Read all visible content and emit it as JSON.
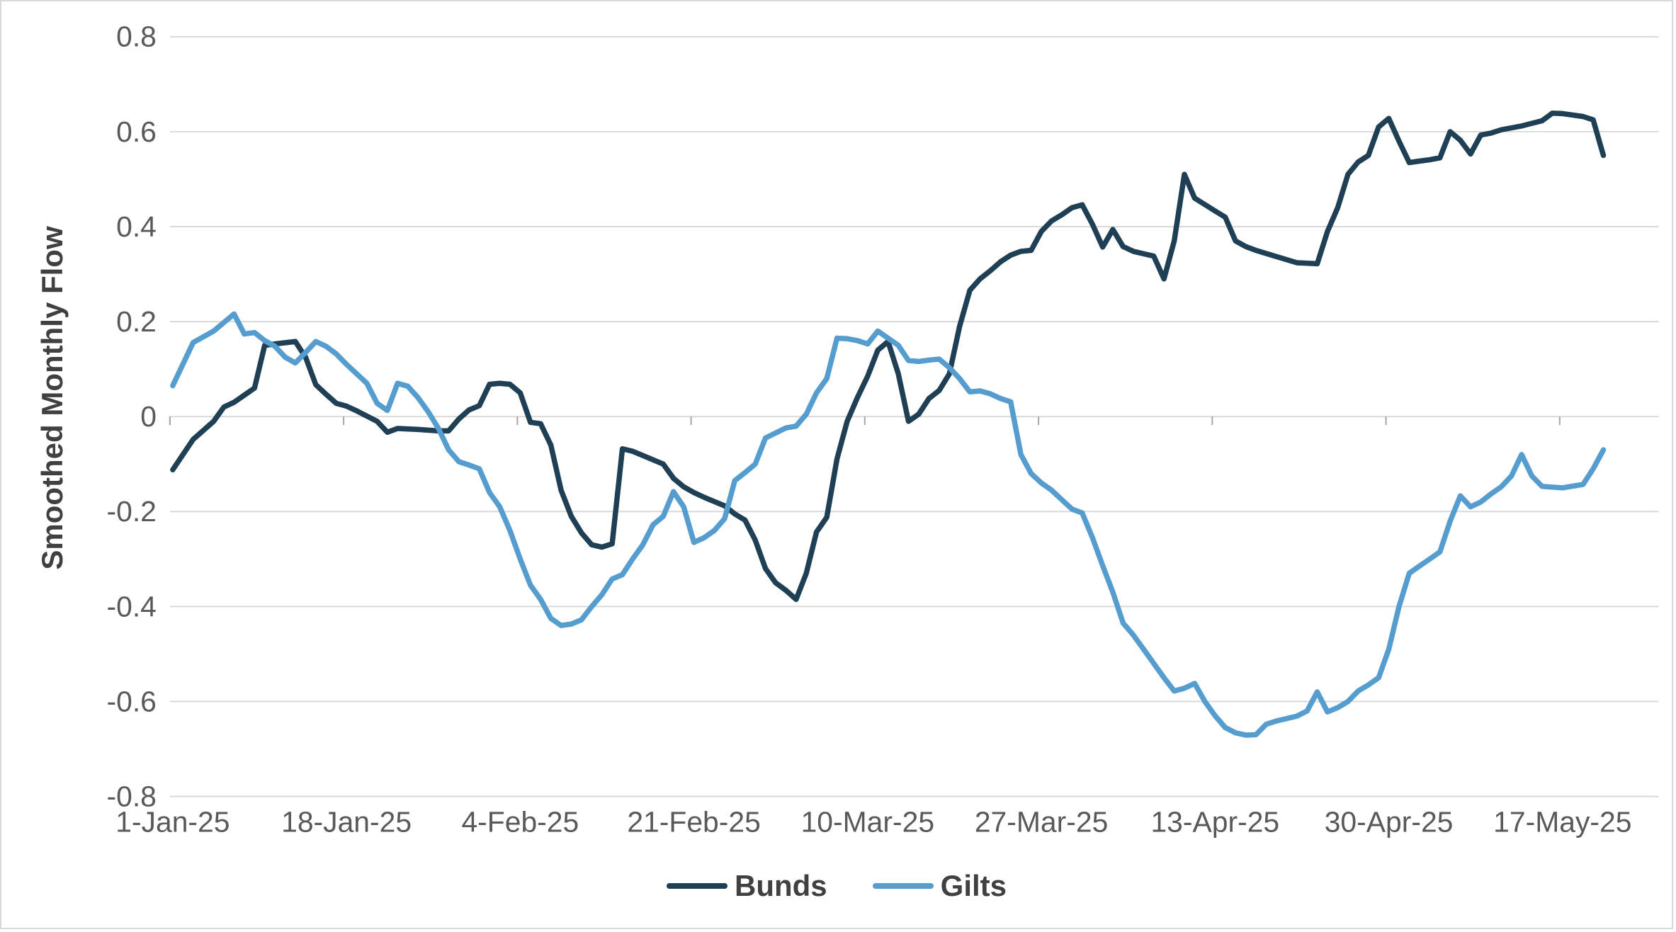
{
  "card": {
    "background": "#ffffff",
    "border_color": "#d9d9d9"
  },
  "chart_data": {
    "type": "line",
    "title": "",
    "xlabel": "",
    "ylabel": "Smoothed Monthly Flow",
    "ylim": [
      -0.8,
      0.8
    ],
    "grid": "horizontal-only",
    "grid_color": "#d9d9d9",
    "tick_color": "#a6a6a6",
    "axis_label_color": "#595959",
    "legend_position": "bottom-center",
    "x_unit": "days-since-1-Jan-25",
    "xlim_days": [
      0,
      145.5
    ],
    "y_ticks": [
      {
        "v": 0.8,
        "label": "0.8"
      },
      {
        "v": 0.6,
        "label": "0.6"
      },
      {
        "v": 0.4,
        "label": "0.4"
      },
      {
        "v": 0.2,
        "label": "0.2"
      },
      {
        "v": 0.0,
        "label": "0"
      },
      {
        "v": -0.2,
        "label": "-0.2"
      },
      {
        "v": -0.4,
        "label": "-0.4"
      },
      {
        "v": -0.6,
        "label": "-0.6"
      },
      {
        "v": -0.8,
        "label": "-0.8"
      }
    ],
    "x_ticks": [
      {
        "day": 0,
        "label": "1-Jan-25"
      },
      {
        "day": 17,
        "label": "18-Jan-25"
      },
      {
        "day": 34,
        "label": "4-Feb-25"
      },
      {
        "day": 51,
        "label": "21-Feb-25"
      },
      {
        "day": 68,
        "label": "10-Mar-25"
      },
      {
        "day": 85,
        "label": "27-Mar-25"
      },
      {
        "day": 102,
        "label": "13-Apr-25"
      },
      {
        "day": 119,
        "label": "30-Apr-25"
      },
      {
        "day": 136,
        "label": "17-May-25"
      }
    ],
    "series": [
      {
        "name": "Bunds",
        "color": "#1e3f54",
        "points": [
          [
            0,
            -0.112
          ],
          [
            2,
            -0.048
          ],
          [
            4,
            -0.01
          ],
          [
            5,
            0.02
          ],
          [
            6,
            0.03
          ],
          [
            7,
            0.045
          ],
          [
            8,
            0.06
          ],
          [
            9,
            0.15
          ],
          [
            10,
            0.153
          ],
          [
            12,
            0.158
          ],
          [
            13,
            0.125
          ],
          [
            14,
            0.067
          ],
          [
            15,
            0.047
          ],
          [
            16,
            0.028
          ],
          [
            17,
            0.022
          ],
          [
            18,
            0.012
          ],
          [
            20,
            -0.01
          ],
          [
            21,
            -0.033
          ],
          [
            22,
            -0.025
          ],
          [
            24,
            -0.027
          ],
          [
            26,
            -0.03
          ],
          [
            27,
            -0.03
          ],
          [
            28,
            -0.005
          ],
          [
            29,
            0.014
          ],
          [
            30,
            0.023
          ],
          [
            31,
            0.068
          ],
          [
            32,
            0.07
          ],
          [
            33,
            0.068
          ],
          [
            34,
            0.05
          ],
          [
            35,
            -0.012
          ],
          [
            36,
            -0.015
          ],
          [
            37,
            -0.06
          ],
          [
            38,
            -0.155
          ],
          [
            39,
            -0.21
          ],
          [
            40,
            -0.245
          ],
          [
            41,
            -0.27
          ],
          [
            42,
            -0.275
          ],
          [
            43,
            -0.268
          ],
          [
            44,
            -0.068
          ],
          [
            45,
            -0.073
          ],
          [
            46,
            -0.082
          ],
          [
            48,
            -0.1
          ],
          [
            49,
            -0.13
          ],
          [
            50,
            -0.148
          ],
          [
            51,
            -0.16
          ],
          [
            52,
            -0.17
          ],
          [
            54,
            -0.188
          ],
          [
            55,
            -0.205
          ],
          [
            56,
            -0.218
          ],
          [
            57,
            -0.26
          ],
          [
            58,
            -0.32
          ],
          [
            59,
            -0.35
          ],
          [
            60,
            -0.366
          ],
          [
            61,
            -0.385
          ],
          [
            62,
            -0.33
          ],
          [
            63,
            -0.243
          ],
          [
            64,
            -0.212
          ],
          [
            65,
            -0.089
          ],
          [
            66,
            -0.01
          ],
          [
            67,
            0.04
          ],
          [
            68,
            0.085
          ],
          [
            69,
            0.14
          ],
          [
            70,
            0.158
          ],
          [
            71,
            0.09
          ],
          [
            72,
            -0.01
          ],
          [
            73,
            0.005
          ],
          [
            74,
            0.038
          ],
          [
            75,
            0.055
          ],
          [
            76,
            0.09
          ],
          [
            77,
            0.19
          ],
          [
            78,
            0.266
          ],
          [
            79,
            0.29
          ],
          [
            80,
            0.307
          ],
          [
            81,
            0.326
          ],
          [
            82,
            0.34
          ],
          [
            83,
            0.348
          ],
          [
            84,
            0.35
          ],
          [
            85,
            0.39
          ],
          [
            86,
            0.412
          ],
          [
            87,
            0.425
          ],
          [
            88,
            0.44
          ],
          [
            89,
            0.446
          ],
          [
            90,
            0.405
          ],
          [
            91,
            0.357
          ],
          [
            92,
            0.394
          ],
          [
            93,
            0.358
          ],
          [
            94,
            0.348
          ],
          [
            96,
            0.338
          ],
          [
            97,
            0.29
          ],
          [
            98,
            0.37
          ],
          [
            99,
            0.51
          ],
          [
            100,
            0.46
          ],
          [
            102,
            0.433
          ],
          [
            103,
            0.42
          ],
          [
            104,
            0.37
          ],
          [
            105,
            0.358
          ],
          [
            106,
            0.35
          ],
          [
            108,
            0.337
          ],
          [
            110,
            0.324
          ],
          [
            112,
            0.322
          ],
          [
            113,
            0.39
          ],
          [
            114,
            0.44
          ],
          [
            115,
            0.51
          ],
          [
            116,
            0.536
          ],
          [
            117,
            0.55
          ],
          [
            118,
            0.61
          ],
          [
            119,
            0.628
          ],
          [
            120,
            0.58
          ],
          [
            121,
            0.535
          ],
          [
            122,
            0.538
          ],
          [
            123,
            0.541
          ],
          [
            124,
            0.545
          ],
          [
            125,
            0.6
          ],
          [
            126,
            0.582
          ],
          [
            127,
            0.553
          ],
          [
            128,
            0.593
          ],
          [
            129,
            0.597
          ],
          [
            130,
            0.604
          ],
          [
            132,
            0.612
          ],
          [
            134,
            0.623
          ],
          [
            135,
            0.639
          ],
          [
            136,
            0.638
          ],
          [
            138,
            0.632
          ],
          [
            139,
            0.625
          ],
          [
            140,
            0.55
          ]
        ]
      },
      {
        "name": "Gilts",
        "color": "#559ccf",
        "points": [
          [
            0,
            0.065
          ],
          [
            2,
            0.156
          ],
          [
            4,
            0.18
          ],
          [
            6,
            0.216
          ],
          [
            7,
            0.174
          ],
          [
            8,
            0.177
          ],
          [
            9,
            0.16
          ],
          [
            10,
            0.148
          ],
          [
            11,
            0.125
          ],
          [
            12,
            0.113
          ],
          [
            13,
            0.135
          ],
          [
            14,
            0.158
          ],
          [
            15,
            0.148
          ],
          [
            16,
            0.132
          ],
          [
            17,
            0.11
          ],
          [
            18,
            0.09
          ],
          [
            19,
            0.07
          ],
          [
            20,
            0.028
          ],
          [
            21,
            0.013
          ],
          [
            22,
            0.07
          ],
          [
            23,
            0.064
          ],
          [
            24,
            0.04
          ],
          [
            25,
            0.01
          ],
          [
            26,
            -0.025
          ],
          [
            27,
            -0.07
          ],
          [
            28,
            -0.095
          ],
          [
            29,
            -0.102
          ],
          [
            30,
            -0.11
          ],
          [
            31,
            -0.16
          ],
          [
            32,
            -0.19
          ],
          [
            33,
            -0.24
          ],
          [
            34,
            -0.3
          ],
          [
            35,
            -0.355
          ],
          [
            36,
            -0.385
          ],
          [
            37,
            -0.425
          ],
          [
            38,
            -0.44
          ],
          [
            39,
            -0.437
          ],
          [
            40,
            -0.428
          ],
          [
            41,
            -0.4
          ],
          [
            42,
            -0.375
          ],
          [
            43,
            -0.342
          ],
          [
            44,
            -0.333
          ],
          [
            45,
            -0.3
          ],
          [
            46,
            -0.27
          ],
          [
            47,
            -0.228
          ],
          [
            48,
            -0.21
          ],
          [
            49,
            -0.158
          ],
          [
            50,
            -0.19
          ],
          [
            51,
            -0.265
          ],
          [
            52,
            -0.255
          ],
          [
            53,
            -0.24
          ],
          [
            54,
            -0.215
          ],
          [
            55,
            -0.135
          ],
          [
            56,
            -0.118
          ],
          [
            57,
            -0.1
          ],
          [
            58,
            -0.045
          ],
          [
            60,
            -0.024
          ],
          [
            61,
            -0.02
          ],
          [
            62,
            0.005
          ],
          [
            63,
            0.05
          ],
          [
            64,
            0.08
          ],
          [
            65,
            0.165
          ],
          [
            66,
            0.164
          ],
          [
            67,
            0.16
          ],
          [
            68,
            0.153
          ],
          [
            69,
            0.18
          ],
          [
            70,
            0.165
          ],
          [
            71,
            0.15
          ],
          [
            72,
            0.118
          ],
          [
            73,
            0.116
          ],
          [
            74,
            0.119
          ],
          [
            75,
            0.121
          ],
          [
            76,
            0.103
          ],
          [
            77,
            0.08
          ],
          [
            78,
            0.052
          ],
          [
            79,
            0.054
          ],
          [
            80,
            0.048
          ],
          [
            81,
            0.038
          ],
          [
            82,
            0.031
          ],
          [
            83,
            -0.08
          ],
          [
            84,
            -0.12
          ],
          [
            85,
            -0.14
          ],
          [
            86,
            -0.155
          ],
          [
            87,
            -0.175
          ],
          [
            88,
            -0.195
          ],
          [
            89,
            -0.203
          ],
          [
            90,
            -0.255
          ],
          [
            91,
            -0.314
          ],
          [
            92,
            -0.37
          ],
          [
            93,
            -0.435
          ],
          [
            94,
            -0.46
          ],
          [
            95,
            -0.49
          ],
          [
            96,
            -0.52
          ],
          [
            97,
            -0.55
          ],
          [
            98,
            -0.578
          ],
          [
            99,
            -0.572
          ],
          [
            100,
            -0.562
          ],
          [
            101,
            -0.6
          ],
          [
            102,
            -0.63
          ],
          [
            103,
            -0.655
          ],
          [
            104,
            -0.666
          ],
          [
            105,
            -0.671
          ],
          [
            106,
            -0.67
          ],
          [
            107,
            -0.648
          ],
          [
            108,
            -0.641
          ],
          [
            110,
            -0.631
          ],
          [
            111,
            -0.62
          ],
          [
            112,
            -0.58
          ],
          [
            113,
            -0.622
          ],
          [
            114,
            -0.613
          ],
          [
            115,
            -0.6
          ],
          [
            116,
            -0.578
          ],
          [
            117,
            -0.565
          ],
          [
            118,
            -0.55
          ],
          [
            119,
            -0.49
          ],
          [
            120,
            -0.4
          ],
          [
            121,
            -0.33
          ],
          [
            122,
            -0.315
          ],
          [
            123,
            -0.3
          ],
          [
            124,
            -0.285
          ],
          [
            125,
            -0.22
          ],
          [
            126,
            -0.167
          ],
          [
            127,
            -0.19
          ],
          [
            128,
            -0.18
          ],
          [
            129,
            -0.163
          ],
          [
            130,
            -0.148
          ],
          [
            131,
            -0.125
          ],
          [
            132,
            -0.08
          ],
          [
            133,
            -0.125
          ],
          [
            134,
            -0.147
          ],
          [
            136,
            -0.15
          ],
          [
            138,
            -0.143
          ],
          [
            139,
            -0.11
          ],
          [
            140,
            -0.07
          ]
        ]
      }
    ]
  }
}
